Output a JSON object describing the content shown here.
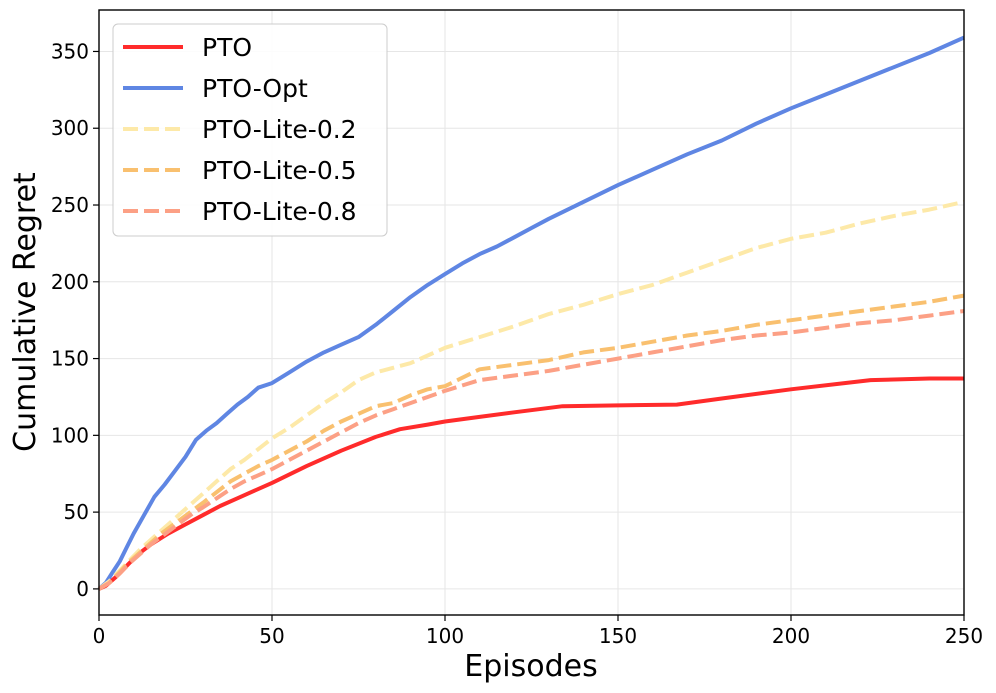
{
  "chart_data": {
    "type": "line",
    "title": "",
    "xlabel": "Episodes",
    "ylabel": "Cumulative Regret",
    "xlim": [
      0,
      250
    ],
    "ylim": [
      -17,
      377
    ],
    "xticks": [
      0,
      50,
      100,
      150,
      200,
      250
    ],
    "yticks": [
      0,
      50,
      100,
      150,
      200,
      250,
      300,
      350
    ],
    "xtick_labels": [
      "0",
      "50",
      "100",
      "150",
      "200",
      "250"
    ],
    "ytick_labels": [
      "0",
      "50",
      "100",
      "150",
      "200",
      "250",
      "300",
      "350"
    ],
    "grid": true,
    "legend_position": "top-left",
    "series": [
      {
        "name": "PTO",
        "color": "#ff2b2b",
        "dashed": false,
        "x": [
          0,
          2,
          5,
          8,
          11,
          15,
          20,
          25,
          30,
          35,
          40,
          45,
          50,
          60,
          70,
          80,
          87,
          95,
          100,
          110,
          120,
          134,
          150,
          167,
          180,
          200,
          223,
          240,
          250
        ],
        "y": [
          0,
          2,
          8,
          15,
          22,
          29,
          36,
          42,
          48,
          54,
          59,
          64,
          69,
          80,
          90,
          99,
          104,
          107,
          109,
          112,
          115,
          119,
          119.5,
          120,
          124,
          130,
          136,
          137,
          137
        ]
      },
      {
        "name": "PTO-Opt",
        "color": "#5f86e3",
        "dashed": false,
        "x": [
          0,
          2,
          4,
          6,
          8,
          10,
          13,
          16,
          19,
          22,
          25,
          28,
          31,
          34,
          37,
          40,
          43,
          46,
          50,
          55,
          60,
          65,
          70,
          75,
          80,
          85,
          90,
          95,
          100,
          105,
          110,
          115,
          120,
          125,
          130,
          140,
          150,
          160,
          170,
          180,
          190,
          200,
          210,
          220,
          230,
          240,
          250
        ],
        "y": [
          0,
          4,
          11,
          18,
          27,
          36,
          48,
          60,
          68,
          77,
          86,
          97,
          103,
          108,
          114,
          120,
          125,
          131,
          134,
          141,
          148,
          154,
          159,
          164,
          172,
          181,
          190,
          198,
          205,
          212,
          218,
          223,
          229,
          235,
          241,
          252,
          263,
          273,
          283,
          292,
          303,
          313,
          322,
          331,
          340,
          349,
          359
        ]
      },
      {
        "name": "PTO-Lite-0.2",
        "color": "#fde9a8",
        "dashed": true,
        "x": [
          0,
          3,
          6,
          9,
          12,
          15,
          18,
          21,
          24,
          27,
          30,
          34,
          38,
          42,
          46,
          50,
          55,
          60,
          65,
          70,
          75,
          80,
          85,
          90,
          95,
          100,
          110,
          120,
          130,
          140,
          150,
          160,
          170,
          180,
          190,
          200,
          210,
          220,
          230,
          240,
          250
        ],
        "y": [
          0,
          5,
          12,
          19,
          26,
          32,
          38,
          44,
          50,
          56,
          62,
          70,
          78,
          84,
          91,
          98,
          105,
          113,
          121,
          128,
          136,
          141,
          144,
          147,
          152,
          157,
          164,
          171,
          179,
          185,
          192,
          198,
          206,
          214,
          222,
          228,
          232,
          238,
          243,
          247,
          252
        ]
      },
      {
        "name": "PTO-Lite-0.5",
        "color": "#f9c06f",
        "dashed": true,
        "x": [
          0,
          3,
          6,
          9,
          12,
          15,
          18,
          21,
          24,
          27,
          30,
          34,
          38,
          42,
          46,
          50,
          55,
          60,
          65,
          70,
          75,
          80,
          85,
          90,
          95,
          100,
          110,
          120,
          130,
          140,
          150,
          160,
          170,
          180,
          190,
          200,
          210,
          220,
          230,
          240,
          250
        ],
        "y": [
          0,
          4,
          11,
          18,
          24,
          30,
          36,
          41,
          46,
          51,
          56,
          63,
          70,
          75,
          80,
          84,
          90,
          96,
          103,
          109,
          114,
          119,
          121,
          126,
          130,
          132,
          143,
          146,
          149,
          154,
          157,
          161,
          165,
          168,
          172,
          175,
          178,
          181,
          184,
          187,
          191
        ]
      },
      {
        "name": "PTO-Lite-0.8",
        "color": "#fca085",
        "dashed": true,
        "x": [
          0,
          3,
          6,
          9,
          12,
          15,
          18,
          21,
          24,
          27,
          30,
          34,
          38,
          42,
          46,
          50,
          55,
          60,
          65,
          70,
          75,
          80,
          85,
          90,
          95,
          100,
          110,
          120,
          130,
          140,
          150,
          160,
          170,
          180,
          190,
          200,
          210,
          220,
          230,
          240,
          250
        ],
        "y": [
          0,
          4,
          10,
          17,
          23,
          29,
          34,
          39,
          44,
          49,
          53,
          59,
          65,
          70,
          74,
          78,
          84,
          90,
          96,
          102,
          108,
          113,
          117,
          121,
          125,
          129,
          136,
          139,
          142,
          146,
          150,
          154,
          158,
          162,
          165,
          167,
          170,
          173,
          175,
          178,
          181
        ]
      }
    ]
  }
}
